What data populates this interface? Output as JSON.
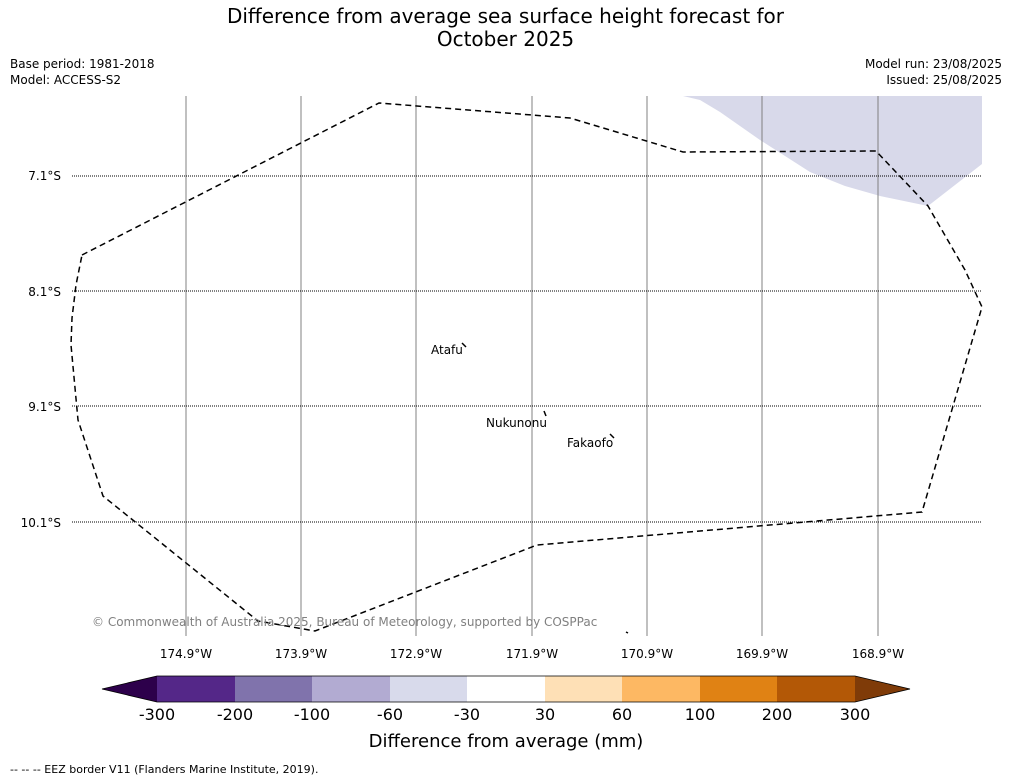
{
  "title_line1": "Difference from average sea surface height forecast for",
  "title_line2": "October 2025",
  "meta": {
    "base_period": "Base period: 1981-2018",
    "model": "Model: ACCESS-S2",
    "model_run": "Model run: 23/08/2025",
    "issued": "Issued: 25/08/2025"
  },
  "map": {
    "lat_labels": [
      "7.1°S",
      "8.1°S",
      "9.1°S",
      "10.1°S"
    ],
    "lon_labels": [
      "174.9°W",
      "173.9°W",
      "172.9°W",
      "171.9°W",
      "170.9°W",
      "169.9°W",
      "168.9°W"
    ],
    "islands": [
      "Atafu",
      "Nukunonu",
      "Fakaofo"
    ],
    "copyright": "© Commonwealth of Australia 2025, Bureau of Meteorology, supported by COSPPac",
    "anomaly_region_color": "#d8d9ea",
    "eez_border_color": "#000000"
  },
  "colorbar": {
    "ticks": [
      "-300",
      "-200",
      "-100",
      "-60",
      "-30",
      "30",
      "60",
      "100",
      "200",
      "300"
    ],
    "colors": [
      "#2d004b",
      "#542788",
      "#8073ac",
      "#b2abd2",
      "#d8daeb",
      "#ffffff",
      "#fee0b6",
      "#fdb863",
      "#e08214",
      "#b35806",
      "#7f3b08"
    ],
    "label": "Difference from average (mm)"
  },
  "legend_note": "--  --  -- EEZ border V11 (Flanders Marine Institute, 2019)."
}
